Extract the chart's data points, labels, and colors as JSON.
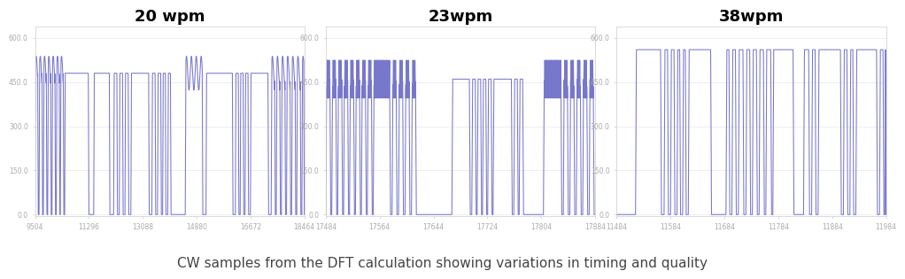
{
  "titles": [
    "20 wpm",
    "23wpm",
    "38wpm"
  ],
  "title_fontsize": 13,
  "title_fontweight": "bold",
  "line_color": "#7777cc",
  "line_width": 0.75,
  "background_color": "#ffffff",
  "ylim": [
    -5,
    640
  ],
  "yticks": [
    0.0,
    150.0,
    300.0,
    450.0,
    600.0
  ],
  "ytick_labels": [
    "0.0",
    "150.0",
    "300.0",
    "450.0",
    "600.0"
  ],
  "caption": "CW samples from the DFT calculation showing variations in timing and quality",
  "caption_fontsize": 11,
  "panel1_xstart": 9504,
  "panel1_xend": 18464,
  "panel2_xstart": 17484,
  "panel2_xend": 17884,
  "panel3_xstart": 11484,
  "panel3_xend": 11984,
  "panel1_xticks": [
    9504,
    11296,
    13088,
    14880,
    16672,
    18464
  ],
  "panel2_xticks": [
    17484,
    17564,
    17644,
    17724,
    17804,
    17884
  ],
  "panel3_xticks": [
    11484,
    11584,
    11684,
    11784,
    11884,
    11984
  ],
  "grid_color": "#e8e8e8",
  "tick_label_color": "#aaaaaa",
  "tick_label_fontsize": 5.5,
  "spine_color": "#cccccc"
}
